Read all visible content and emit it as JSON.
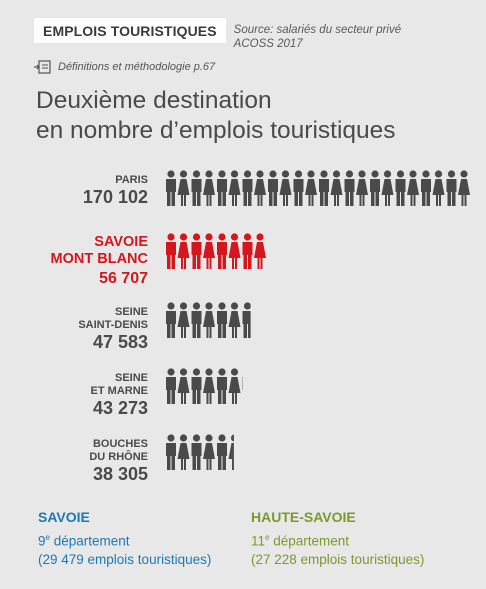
{
  "header": {
    "tag": "EMPLOIS TOURISTIQUES",
    "source_line1": "Source: salariés du secteur privé",
    "source_line2": "ACOSS 2017",
    "definitions": "Définitions et méthodologie p.67"
  },
  "title": {
    "line1": "Deuxième destination",
    "line2": "en nombre d’emplois touristiques"
  },
  "chart_data": {
    "type": "bar",
    "categories": [
      [
        "PARIS"
      ],
      [
        "SAVOIE",
        "MONT BLANC"
      ],
      [
        "SEINE",
        "SAINT-DENIS"
      ],
      [
        "SEINE",
        "ET MARNE"
      ],
      [
        "BOUCHES",
        "DU RHÔNE"
      ]
    ],
    "value_labels": [
      "170 102",
      "56 707",
      "47 583",
      "43 273",
      "38 305"
    ],
    "values": [
      170102,
      56707,
      47583,
      43273,
      38305
    ],
    "highlight_index": 1,
    "colors": {
      "default": "#4a4a4a",
      "highlight": "#d4161d"
    }
  },
  "footer": {
    "savoie": {
      "name": "SAVOIE",
      "rank_num": "9",
      "rank_sup": "e",
      "rank_text": " département",
      "count": "(29 479 emplois touristiques)"
    },
    "haute_savoie": {
      "name": "HAUTE-SAVOIE",
      "rank_num": "11",
      "rank_sup": "e",
      "rank_text": " département",
      "count": "(27 228 emplois touristiques)"
    }
  }
}
